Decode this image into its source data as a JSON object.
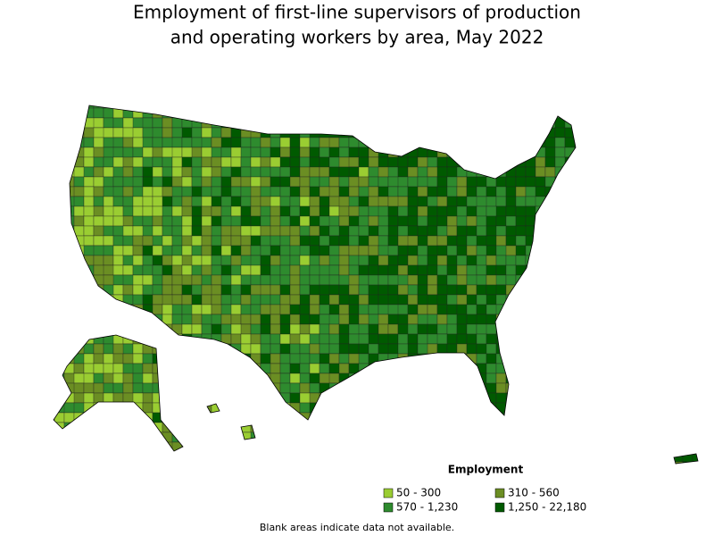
{
  "title_lines": [
    "Employment of first-line supervisors of production",
    "and operating workers by area, May 2022"
  ],
  "legend": {
    "title": "Employment",
    "items": [
      {
        "label": "50 - 300",
        "color": "#9acd32"
      },
      {
        "label": "310 - 560",
        "color": "#6b8e23"
      },
      {
        "label": "570 - 1,230",
        "color": "#2e8b2e"
      },
      {
        "label": "1,250 - 22,180",
        "color": "#005a00"
      }
    ]
  },
  "footnote": "Blank areas indicate data not available."
}
